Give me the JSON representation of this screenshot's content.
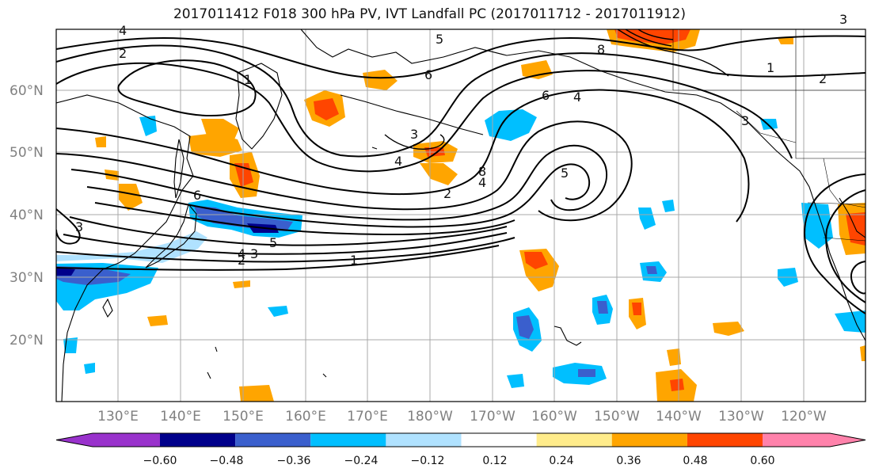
{
  "map": {
    "title": "2017011412 F018 300 hPa PV, IVT Landfall PC (2017011712 - 2017011912)",
    "lat_labels": [
      "60°N",
      "50°N",
      "40°N",
      "30°N",
      "20°N"
    ],
    "lon_labels": [
      "130°E",
      "140°E",
      "150°E",
      "160°E",
      "170°E",
      "180°W",
      "170°W",
      "160°W",
      "150°W",
      "140°W",
      "130°W",
      "120°W"
    ],
    "contour_labels": [
      "4",
      "2",
      "1",
      "6",
      "3",
      "5",
      "8",
      "4",
      "1",
      "2",
      "6",
      "3",
      "4",
      "2",
      "5",
      "8",
      "3",
      "4",
      "5",
      "2",
      "6",
      "3",
      "4",
      "3",
      "1"
    ],
    "colorbar": {
      "ticks": [
        "−0.60",
        "−0.48",
        "−0.36",
        "−0.24",
        "−0.12",
        "0.12",
        "0.24",
        "0.36",
        "0.48",
        "0.60"
      ],
      "colors": [
        "#9932cc",
        "#00008b",
        "#3a5fcd",
        "#00bfff",
        "#b0e2ff",
        "#ffffff",
        "#ffec8b",
        "#ffa500",
        "#ff4500",
        "#b22222",
        "#ff82ab"
      ]
    },
    "fill_colors": {
      "neg_light": "#b0e2ff",
      "neg_mid": "#00bfff",
      "neg_strong": "#3a5fcd",
      "neg_max": "#00008b",
      "pos_light": "#ffec8b",
      "pos_mid": "#ffa500",
      "pos_strong": "#ff4500",
      "pos_max": "#b22222"
    }
  }
}
